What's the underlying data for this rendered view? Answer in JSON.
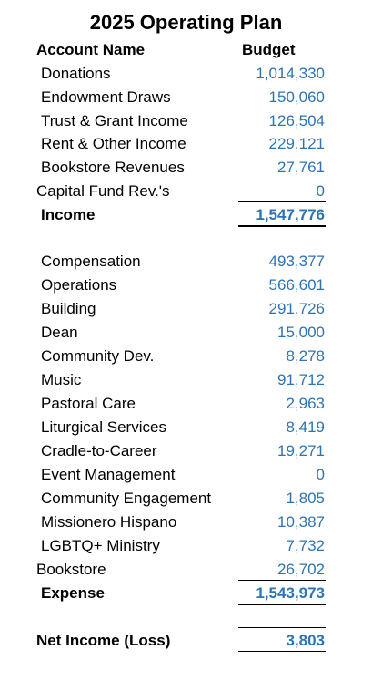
{
  "title": "2025 Operating Plan",
  "header": {
    "account_label": "Account Name",
    "budget_label": "Budget"
  },
  "income_rows": [
    {
      "name": "Donations",
      "value": "1,014,330"
    },
    {
      "name": "Endowment Draws",
      "value": "150,060"
    },
    {
      "name": "Trust & Grant Income",
      "value": "126,504"
    },
    {
      "name": "Rent & Other Income",
      "value": "229,121"
    },
    {
      "name": "Bookstore Revenues",
      "value": "27,761"
    },
    {
      "name": "Capital Fund Rev.'s",
      "value": "0"
    }
  ],
  "income_total": {
    "name": "Income",
    "value": "1,547,776"
  },
  "expense_rows": [
    {
      "name": "Compensation",
      "value": "493,377"
    },
    {
      "name": "Operations",
      "value": "566,601"
    },
    {
      "name": "Building",
      "value": "291,726"
    },
    {
      "name": "Dean",
      "value": "15,000"
    },
    {
      "name": "Community Dev.",
      "value": "8,278"
    },
    {
      "name": "Music",
      "value": "91,712"
    },
    {
      "name": "Pastoral Care",
      "value": "2,963"
    },
    {
      "name": "Liturgical Services",
      "value": "8,419"
    },
    {
      "name": "Cradle-to-Career",
      "value": "19,271"
    },
    {
      "name": "Event Management",
      "value": "0"
    },
    {
      "name": "Community Engagement",
      "value": "1,805"
    },
    {
      "name": "Missionero Hispano",
      "value": "10,387"
    },
    {
      "name": "LGBTQ+ Ministry",
      "value": "7,732"
    },
    {
      "name": "Bookstore",
      "value": "26,702"
    }
  ],
  "expense_total": {
    "name": "Expense",
    "value": "1,543,973"
  },
  "net": {
    "name": "Net Income (Loss)",
    "value": "3,803"
  },
  "colors": {
    "value_text": "#2e74b5",
    "label_text": "#000000",
    "background": "#ffffff"
  }
}
